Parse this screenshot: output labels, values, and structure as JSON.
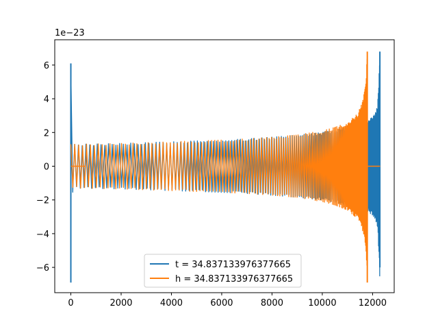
{
  "chart_data": {
    "type": "line",
    "title": "",
    "xlabel": "",
    "ylabel": "",
    "y_offset_text": "1e−23",
    "y_scale": 1e-23,
    "xlim": [
      -640,
      12860
    ],
    "ylim": [
      -7.5,
      7.5
    ],
    "xticks": [
      0,
      2000,
      4000,
      6000,
      8000,
      10000,
      12000
    ],
    "xtick_labels": [
      "0",
      "2000",
      "4000",
      "6000",
      "8000",
      "10000",
      "12000"
    ],
    "yticks": [
      -6,
      -4,
      -2,
      0,
      2,
      4,
      6
    ],
    "ytick_labels": [
      "−6",
      "−4",
      "−2",
      "0",
      "2",
      "4",
      "6"
    ],
    "grid": false,
    "legend_position": "lower center",
    "series": [
      {
        "name": "t = 34.837133976377665",
        "color": "#1f77b4",
        "envelope": {
          "x": [
            0,
            80,
            1000,
            2000,
            3000,
            4000,
            5000,
            6000,
            7000,
            8000,
            9000,
            10000,
            10500,
            11000,
            11500,
            11750,
            11850,
            11900,
            12000,
            12100,
            12200,
            12260,
            12290
          ],
          "y": [
            6.1,
            1.3,
            1.32,
            1.35,
            1.4,
            1.45,
            1.5,
            1.55,
            1.62,
            1.72,
            1.85,
            2.0,
            2.15,
            2.3,
            2.5,
            2.6,
            2.7,
            2.8,
            2.9,
            3.1,
            3.6,
            5.5,
            6.8
          ]
        },
        "spikes": [
          {
            "x": 0,
            "min": -6.9,
            "max": 6.1
          },
          {
            "x": 12290,
            "min": -6.0,
            "max": 6.8
          }
        ]
      },
      {
        "name": "h = 34.837133976377665",
        "color": "#ff7f0e",
        "envelope": {
          "x": [
            0,
            80,
            1000,
            2000,
            3000,
            4000,
            5000,
            6000,
            7000,
            8000,
            9000,
            10000,
            10500,
            11000,
            11400,
            11600,
            11700,
            11760,
            11790
          ],
          "y": [
            1.4,
            1.3,
            1.32,
            1.35,
            1.4,
            1.45,
            1.5,
            1.55,
            1.62,
            1.72,
            1.85,
            2.1,
            2.3,
            2.6,
            3.1,
            3.8,
            4.6,
            5.8,
            6.8
          ]
        },
        "spikes": [
          {
            "x": 11790,
            "min": -6.9,
            "max": 6.8
          }
        ],
        "flat_segments": [
          {
            "x0": 0,
            "x1": 600,
            "y": 0
          },
          {
            "x0": 11800,
            "x1": 12300,
            "y": 0
          }
        ]
      }
    ]
  }
}
